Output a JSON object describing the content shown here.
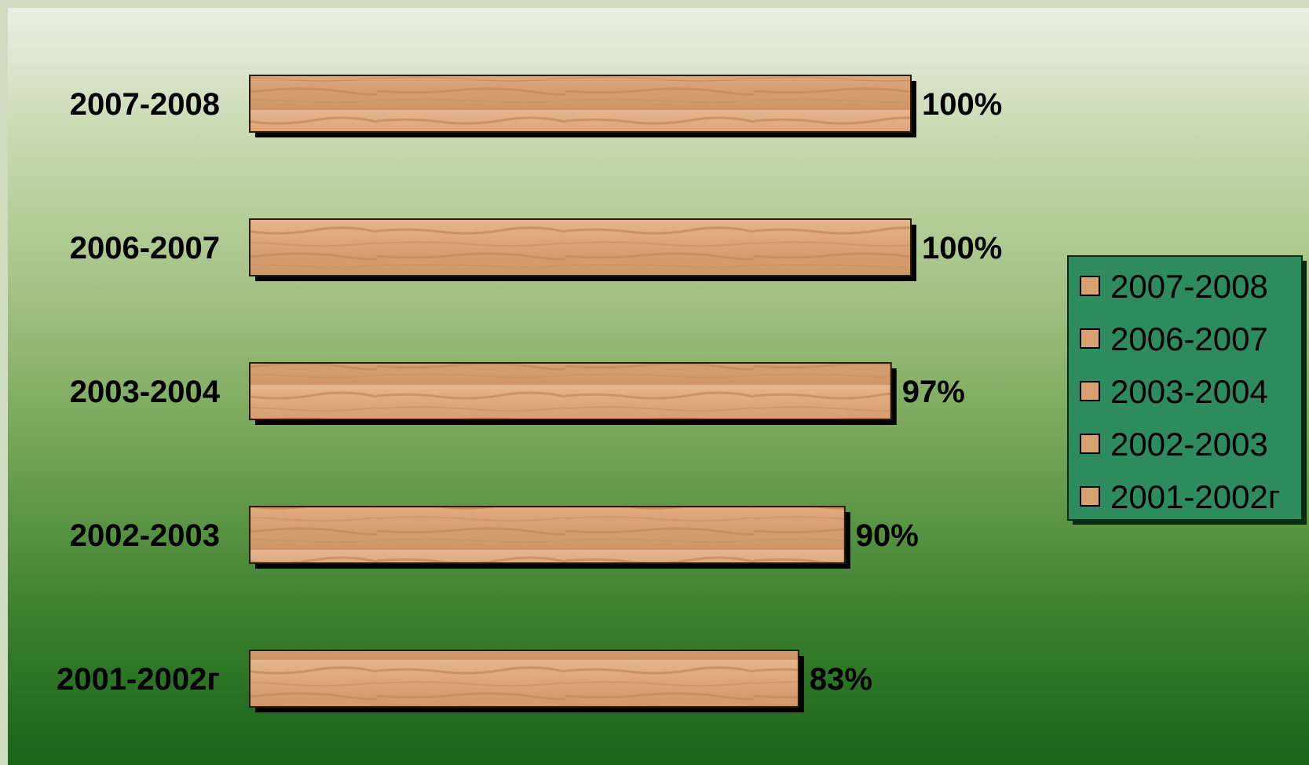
{
  "chart_data": {
    "type": "bar",
    "orientation": "horizontal",
    "categories": [
      "2007-2008",
      "2006-2007",
      "2003-2004",
      "2002-2003",
      "2001-2002г"
    ],
    "values": [
      100,
      100,
      97,
      90,
      83
    ],
    "data_labels": [
      "100%",
      "100%",
      "97%",
      "90%",
      "83%"
    ],
    "unit": "%",
    "xlim": [
      0,
      100
    ],
    "grid": false,
    "legend": {
      "placement": "right",
      "entries": [
        "2007-2008",
        "2006-2007",
        "2003-2004",
        "2002-2003",
        "2001-2002г"
      ]
    },
    "colors": {
      "bar_fill": "#dba57a",
      "bar_shadow": "#000000",
      "legend_bg": "#2e8b5e",
      "legend_swatch": "#d9a070",
      "background_top": "#e9f0e2",
      "background_bottom": "#1a6419"
    }
  }
}
